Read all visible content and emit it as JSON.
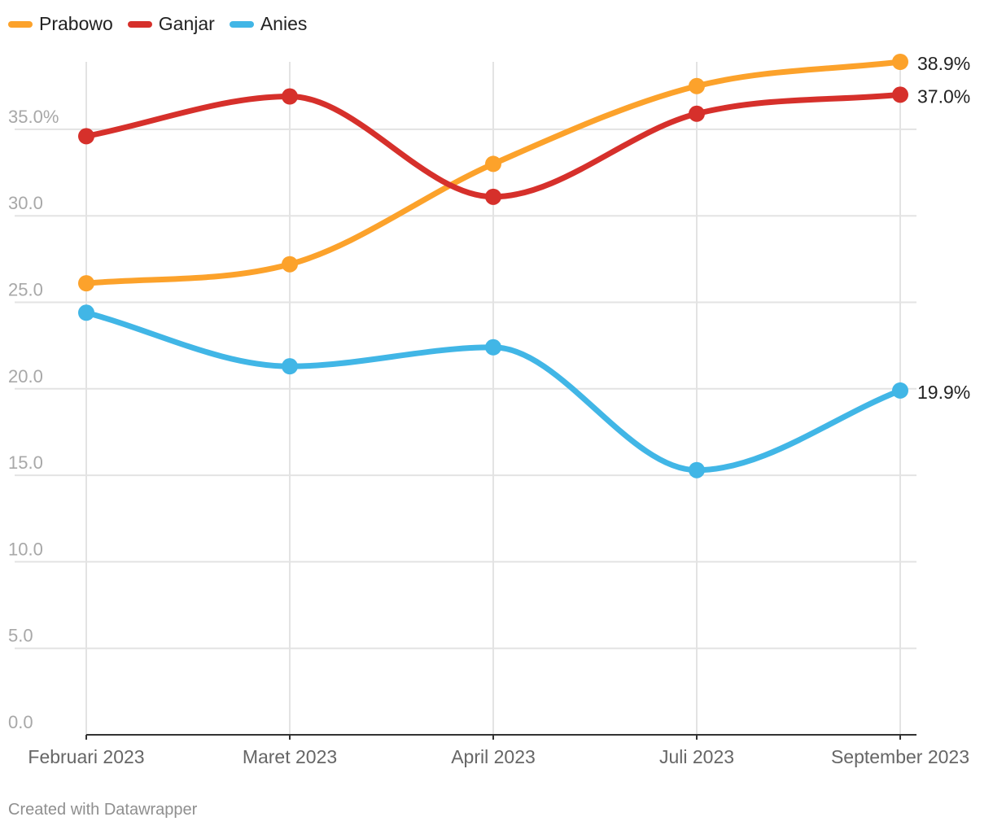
{
  "chart_data": {
    "type": "line",
    "categories": [
      "Februari 2023",
      "Maret 2023",
      "April 2023",
      "Juli 2023",
      "September 2023"
    ],
    "series": [
      {
        "name": "Prabowo",
        "color": "#fca22b",
        "values": [
          26.1,
          27.2,
          33.0,
          37.5,
          38.9
        ],
        "end_label": "38.9%"
      },
      {
        "name": "Ganjar",
        "color": "#d6302b",
        "values": [
          34.6,
          36.9,
          31.1,
          35.9,
          37.0
        ],
        "end_label": "37.0%"
      },
      {
        "name": "Anies",
        "color": "#41b6e6",
        "values": [
          24.4,
          21.3,
          22.4,
          15.3,
          19.9
        ],
        "end_label": "19.9%"
      }
    ],
    "y_ticks": [
      {
        "value": 0,
        "label": "0.0"
      },
      {
        "value": 5,
        "label": "5.0"
      },
      {
        "value": 10,
        "label": "10.0"
      },
      {
        "value": 15,
        "label": "15.0"
      },
      {
        "value": 20,
        "label": "20.0"
      },
      {
        "value": 25,
        "label": "25.0"
      },
      {
        "value": 30,
        "label": "30.0"
      },
      {
        "value": 35,
        "label": "35.0%"
      }
    ],
    "ylim": [
      0,
      38.9
    ],
    "grid": true,
    "legend_position": "top-left"
  },
  "footer": "Created with Datawrapper"
}
